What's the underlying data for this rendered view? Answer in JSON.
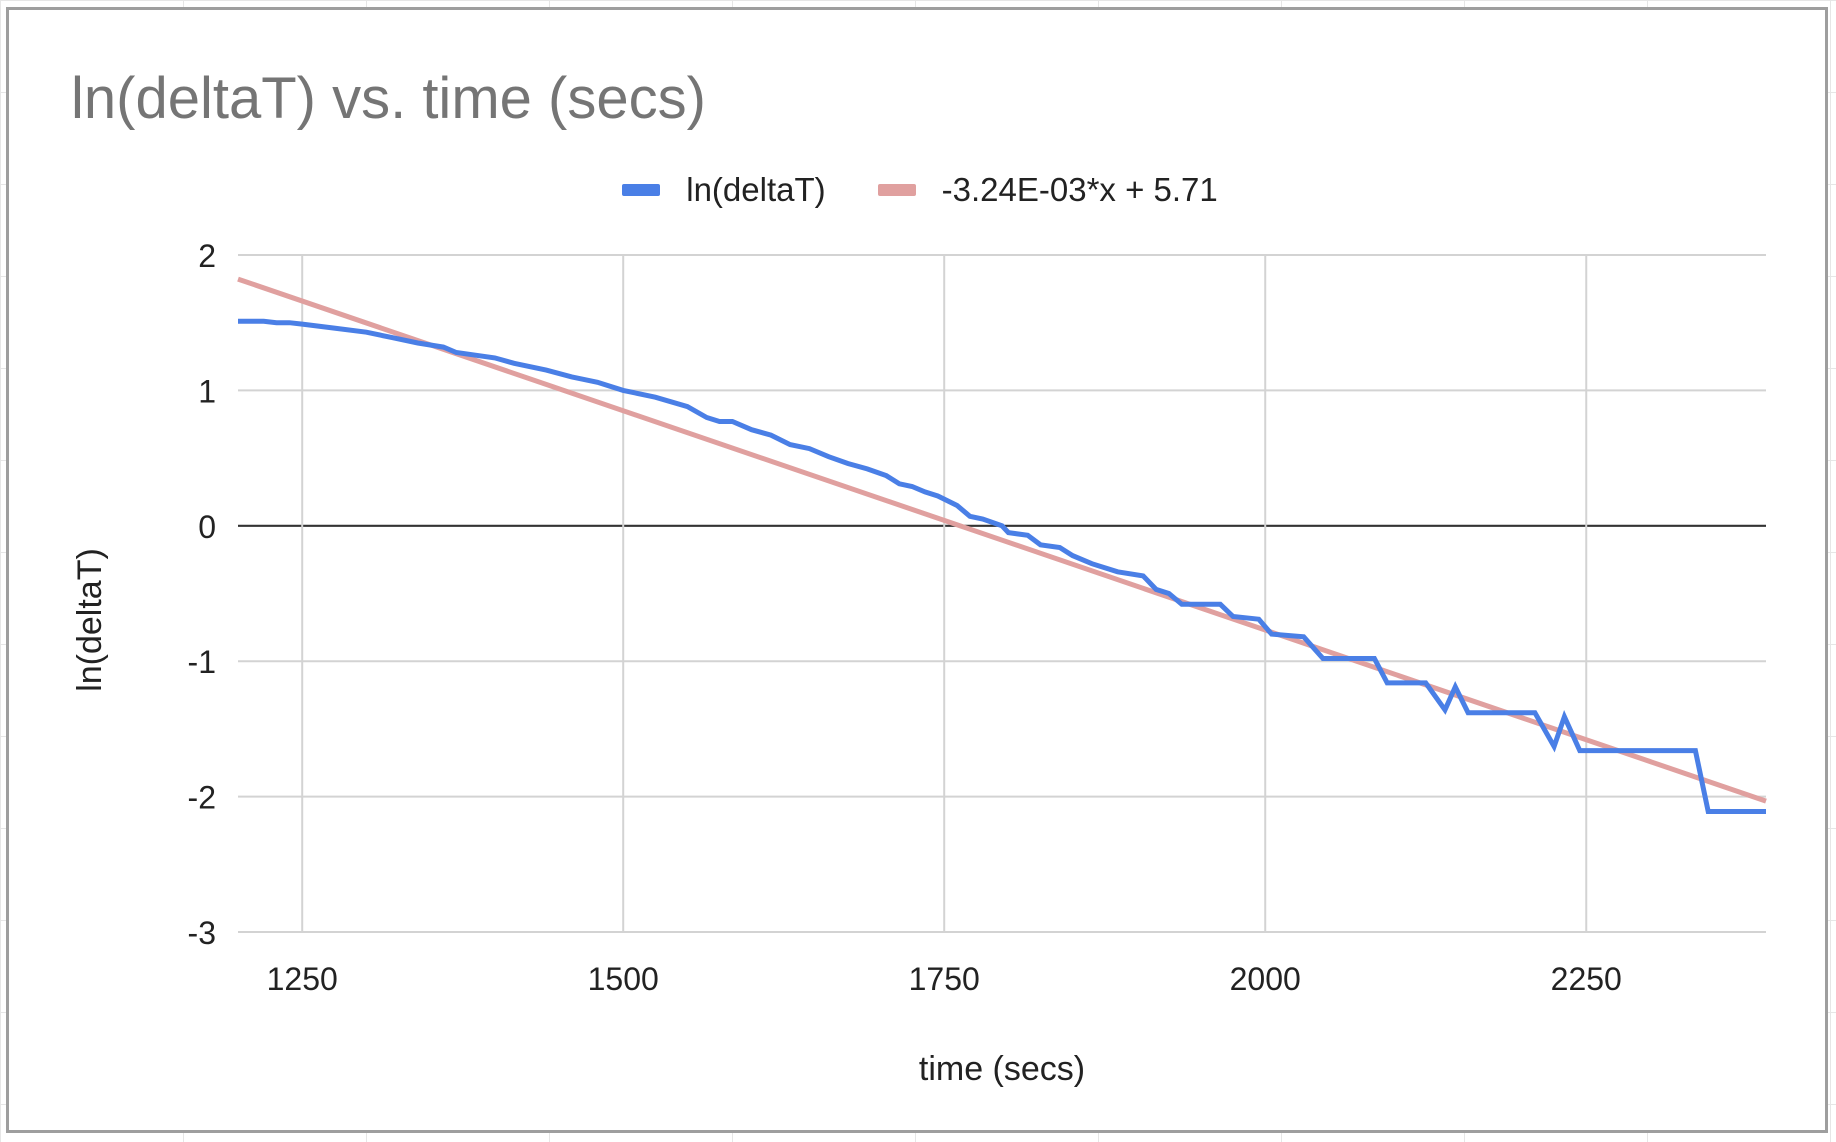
{
  "chart_data": {
    "type": "line",
    "title": "ln(deltaT) vs. time (secs)",
    "xlabel": "time (secs)",
    "ylabel": "ln(deltaT)",
    "xlim": [
      1200,
      2390
    ],
    "ylim": [
      -3,
      2
    ],
    "x_ticks": [
      "1250",
      "1500",
      "1750",
      "2000",
      "2250"
    ],
    "x_tick_values": [
      1250,
      1500,
      1750,
      2000,
      2250
    ],
    "y_ticks": [
      "2",
      "1",
      "0",
      "-1",
      "-2",
      "-3"
    ],
    "y_tick_values": [
      2,
      1,
      0,
      -1,
      -2,
      -3
    ],
    "grid": true,
    "legend_position": "top",
    "series": [
      {
        "name": "ln(deltaT)",
        "color": "#4a7fe6",
        "style": "line",
        "points": [
          [
            1200,
            1.51
          ],
          [
            1220,
            1.51
          ],
          [
            1230,
            1.5
          ],
          [
            1240,
            1.5
          ],
          [
            1250,
            1.49
          ],
          [
            1275,
            1.46
          ],
          [
            1300,
            1.43
          ],
          [
            1320,
            1.39
          ],
          [
            1340,
            1.35
          ],
          [
            1360,
            1.32
          ],
          [
            1370,
            1.28
          ],
          [
            1385,
            1.26
          ],
          [
            1400,
            1.24
          ],
          [
            1415,
            1.2
          ],
          [
            1440,
            1.15
          ],
          [
            1460,
            1.1
          ],
          [
            1480,
            1.06
          ],
          [
            1500,
            1.0
          ],
          [
            1525,
            0.95
          ],
          [
            1550,
            0.88
          ],
          [
            1565,
            0.8
          ],
          [
            1575,
            0.77
          ],
          [
            1585,
            0.77
          ],
          [
            1600,
            0.71
          ],
          [
            1615,
            0.67
          ],
          [
            1630,
            0.6
          ],
          [
            1645,
            0.57
          ],
          [
            1660,
            0.51
          ],
          [
            1675,
            0.46
          ],
          [
            1690,
            0.42
          ],
          [
            1705,
            0.37
          ],
          [
            1715,
            0.31
          ],
          [
            1725,
            0.29
          ],
          [
            1735,
            0.25
          ],
          [
            1745,
            0.22
          ],
          [
            1760,
            0.15
          ],
          [
            1770,
            0.07
          ],
          [
            1780,
            0.05
          ],
          [
            1795,
            0.0
          ],
          [
            1800,
            -0.05
          ],
          [
            1815,
            -0.07
          ],
          [
            1825,
            -0.14
          ],
          [
            1840,
            -0.16
          ],
          [
            1850,
            -0.22
          ],
          [
            1865,
            -0.28
          ],
          [
            1885,
            -0.34
          ],
          [
            1905,
            -0.37
          ],
          [
            1915,
            -0.47
          ],
          [
            1925,
            -0.5
          ],
          [
            1935,
            -0.58
          ],
          [
            1950,
            -0.58
          ],
          [
            1965,
            -0.58
          ],
          [
            1975,
            -0.67
          ],
          [
            1995,
            -0.69
          ],
          [
            2005,
            -0.8
          ],
          [
            2030,
            -0.82
          ],
          [
            2045,
            -0.98
          ],
          [
            2085,
            -0.98
          ],
          [
            2095,
            -1.16
          ],
          [
            2125,
            -1.16
          ],
          [
            2140,
            -1.36
          ],
          [
            2148,
            -1.19
          ],
          [
            2158,
            -1.38
          ],
          [
            2210,
            -1.38
          ],
          [
            2225,
            -1.63
          ],
          [
            2233,
            -1.41
          ],
          [
            2245,
            -1.66
          ],
          [
            2335,
            -1.66
          ],
          [
            2345,
            -2.11
          ],
          [
            2390,
            -2.11
          ]
        ]
      },
      {
        "name": "-3.24E-03*x + 5.71",
        "color": "#e0a09f",
        "style": "trendline",
        "slope": -0.00324,
        "intercept": 5.71
      }
    ]
  }
}
